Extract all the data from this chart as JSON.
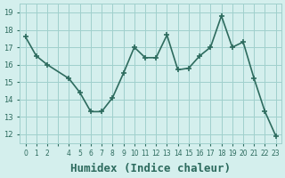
{
  "x": [
    0,
    1,
    2,
    4,
    5,
    6,
    7,
    8,
    9,
    10,
    11,
    12,
    13,
    14,
    15,
    16,
    17,
    18,
    19,
    20,
    21,
    22,
    23
  ],
  "y": [
    17.6,
    16.5,
    16.0,
    15.2,
    14.4,
    13.3,
    13.3,
    14.1,
    15.5,
    17.0,
    16.4,
    16.4,
    17.7,
    15.7,
    15.8,
    16.5,
    17.0,
    18.8,
    17.0,
    17.3,
    15.2,
    13.3,
    11.9
  ],
  "line_color": "#2d6b5e",
  "marker": "+",
  "markersize": 5,
  "linewidth": 1.2,
  "xlabel": "Humidex (Indice chaleur)",
  "xlabel_fontsize": 9,
  "bg_color": "#d4efed",
  "grid_color": "#a0d0cc",
  "tick_color": "#2d6b5e",
  "label_color": "#2d6b5e",
  "xlim": [
    -0.5,
    23.5
  ],
  "ylim": [
    11.5,
    19.5
  ],
  "yticks": [
    12,
    13,
    14,
    15,
    16,
    17,
    18,
    19
  ],
  "xticks": [
    0,
    1,
    2,
    3,
    4,
    5,
    6,
    7,
    8,
    9,
    10,
    11,
    12,
    13,
    14,
    15,
    16,
    17,
    18,
    19,
    20,
    21,
    22,
    23
  ],
  "xtick_labels": [
    "0",
    "1",
    "2",
    "",
    "4",
    "5",
    "6",
    "7",
    "8",
    "9",
    "10",
    "11",
    "12",
    "13",
    "14",
    "15",
    "16",
    "17",
    "18",
    "19",
    "20",
    "21",
    "22",
    "23"
  ]
}
